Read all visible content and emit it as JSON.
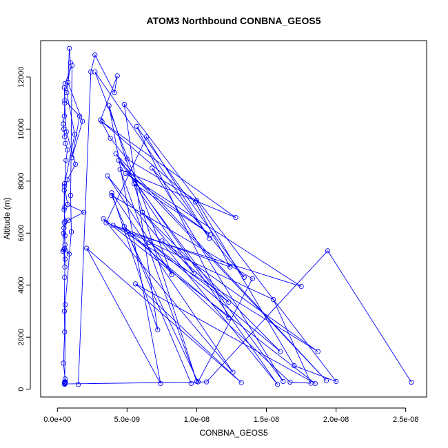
{
  "chart_data": {
    "type": "line",
    "title": "ATOM3 Northbound CONBNA_GEOS5",
    "xlabel": "CONBNA_GEOS5",
    "ylabel": "Altitude (m)",
    "xlim": [
      -1.2e-09,
      2.65e-08
    ],
    "ylim": [
      -300,
      13400
    ],
    "xticks": [
      0,
      5e-09,
      1e-08,
      1.5e-08,
      2e-08,
      2.5e-08
    ],
    "xtick_labels": [
      "0.0e+00",
      "5.0e-09",
      "1.0e-08",
      "1.5e-08",
      "2.0e-08",
      "2.5e-08"
    ],
    "yticks": [
      0,
      2000,
      4000,
      6000,
      8000,
      10000,
      12000
    ],
    "ytick_labels": [
      "0",
      "2000",
      "4000",
      "6000",
      "8000",
      "10000",
      "12000"
    ],
    "grid": false,
    "series": [
      {
        "color": "#0000ff",
        "marker": "open-circle",
        "x": [
          5.2e-10,
          5.4e-10,
          5.1e-10,
          5.3e-10,
          5.6e-10,
          1e-09,
          9.5e-10,
          1.05e-09,
          5.5e-10,
          5e-10,
          4.2e-10,
          4.6e-10,
          5.2e-10,
          5.8e-10,
          7.2e-10,
          6.2e-10,
          5.1e-10,
          7.4e-10,
          1.9e-09,
          8e-10,
          4.7e-10,
          5.4e-10,
          8.5e-10,
          4.6e-10,
          5.3e-10,
          5.4e-10,
          5.6e-10,
          4.8e-10,
          4.9e-10,
          7.1e-10,
          1.3e-09,
          6.4e-10,
          5.2e-10,
          5e-10,
          5.3e-10,
          1.6e-09,
          1.05e-09,
          1.8e-09,
          7.6e-10,
          8.6e-10,
          9.4e-10,
          6.7e-10,
          1.25e-09,
          5.1e-10,
          5.3e-10,
          4.9e-10,
          4.4e-10,
          4e-10,
          4.9e-10,
          5.5e-10,
          5.2e-10,
          5e-10,
          5.2e-10,
          4.3e-10,
          5.5e-10,
          5.8e-10,
          5.3e-10,
          5.2e-10,
          1.07e-08,
          1.94e-08,
          2.54e-08
        ],
        "y": [
          190,
          220,
          250,
          280,
          3250,
          6050,
          7450,
          12450,
          11750,
          10500,
          10200,
          10000,
          9700,
          9450,
          9200,
          8800,
          7800,
          7100,
          6800,
          6500,
          6200,
          5550,
          5200,
          5350,
          4700,
          5900,
          6450,
          6900,
          7650,
          8050,
          8650,
          9900,
          11000,
          11600,
          11100,
          10500,
          8900,
          10300,
          11800,
          13100,
          12550,
          11400,
          9800,
          7900,
          7000,
          6400,
          6000,
          5300,
          5400,
          5000,
          4300,
          3000,
          2200,
          1000,
          400,
          280,
          240,
          200,
          280,
          5320,
          270
        ]
      },
      {
        "color": "#0000ff",
        "marker": "open-circle",
        "x": [
          1.5e-09,
          2.4e-09,
          2.7e-09,
          4.1e-09,
          4.3e-09,
          3.1e-09,
          3.8e-09,
          5e-09,
          1e-08,
          1.7e-08,
          2e-08,
          4.8e-09,
          7.2e-09,
          3.9e-09,
          1.26e-08,
          3.3e-09,
          1.85e-08,
          5.6e-09,
          1.32e-08,
          2.1e-09,
          7.4e-09,
          3.7e-09,
          1e-08,
          4.5e-09,
          1.28e-08,
          3.2e-09,
          9.9e-09,
          1.24e-08,
          3.5e-09,
          6.4e-09,
          1.09e-08,
          2.7e-09,
          8.2e-09,
          3.6e-09,
          1.58e-08,
          4.2e-09,
          1.93e-08,
          4.4e-09,
          1.62e-08,
          6.8e-09,
          1.34e-08,
          5.7e-09,
          1.23e-08,
          5e-09,
          1.75e-08,
          4.9e-09,
          1.1e-08,
          5.5e-09,
          9.8e-09,
          6.1e-09,
          1.6e-08,
          6.6e-09,
          1.23e-08,
          7.5e-09,
          1.87e-08,
          4e-09,
          1.55e-08,
          1.82e-08,
          1.67e-08,
          4.8e-09,
          1.01e-08,
          1.4e-08,
          3.9e-09,
          9.6e-09
        ],
        "y": [
          180,
          12200,
          12850,
          11400,
          12050,
          10350,
          9650,
          8850,
          7250,
          900,
          300,
          10950,
          2280,
          7550,
          650,
          6550,
          220,
          4050,
          250,
          5420,
          220,
          10900,
          300,
          8450,
          6600,
          10280,
          7200,
          4700,
          6400,
          9700,
          5800,
          12200,
          4400,
          8200,
          180,
          9050,
          330,
          8800,
          300,
          8500,
          4300,
          10100,
          2750,
          6050,
          3950,
          8300,
          5950,
          7900,
          4450,
          6800,
          1450,
          5650,
          3350,
          5700,
          1450,
          6300,
          3450,
          230,
          270,
          6250,
          280,
          4250,
          7450,
          220
        ]
      }
    ]
  }
}
